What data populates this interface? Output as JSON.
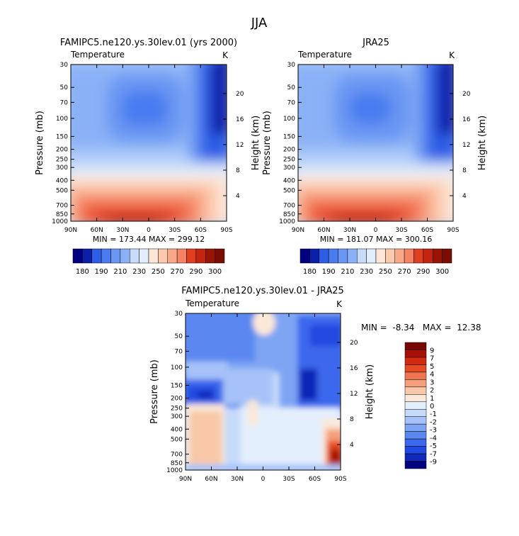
{
  "page_title": "JJA",
  "colors": {
    "cold_scale": [
      "#000080",
      "#0a1ea8",
      "#1b3dd0",
      "#2e5ee6",
      "#4a7cf0",
      "#6a97f3",
      "#8ab0f6",
      "#aac8f8",
      "#c8dcfa",
      "#e2eefc"
    ],
    "warm_scale": [
      "#fde6d6",
      "#fbc9ad",
      "#f8a888",
      "#f48464",
      "#ee6040",
      "#e03f22",
      "#c42510",
      "#9a1406",
      "#7a0c02"
    ],
    "diff_scale": [
      "#000080",
      "#1028b8",
      "#2148e0",
      "#3b68ec",
      "#5a88f0",
      "#7ea4f4",
      "#a6c2f8",
      "#c6daf9",
      "#e4effd",
      "#fbe8d8",
      "#f8c8a8",
      "#f4a07c",
      "#ef7450",
      "#e64a24",
      "#d02a10",
      "#a81206",
      "#7a0602"
    ]
  },
  "chart_data": [
    {
      "type": "heatmap",
      "title": "FAMIPC5.ne120.ys.30lev.01 (yrs 2000)",
      "variable": "Temperature",
      "units": "K",
      "ylabel": "Pressure (mb)",
      "ylabel_right": "Height (km)",
      "x_ticks": [
        "90N",
        "60N",
        "30N",
        "0",
        "30S",
        "60S",
        "90S"
      ],
      "y_ticks": [
        "30",
        "50",
        "70",
        "100",
        "150",
        "200",
        "250",
        "300",
        "400",
        "500",
        "700",
        "850",
        "1000"
      ],
      "height_ticks": [
        "20",
        "16",
        "12",
        "8",
        "4"
      ],
      "stats": "MIN = 173.44   MAX = 299.12",
      "colorbar_labels": [
        "180",
        "190",
        "210",
        "230",
        "250",
        "270",
        "290",
        "300"
      ],
      "levels": [
        180,
        190,
        200,
        210,
        220,
        230,
        240,
        250,
        260,
        270,
        280,
        290,
        300
      ],
      "peak_latitude": "10N",
      "ylim": [
        30,
        1000
      ]
    },
    {
      "type": "heatmap",
      "title": "JRA25",
      "variable": "Temperature",
      "units": "K",
      "ylabel": "Pressure (mb)",
      "ylabel_right": "Height (km)",
      "x_ticks": [
        "90N",
        "60N",
        "30N",
        "0",
        "30S",
        "60S",
        "90S"
      ],
      "y_ticks": [
        "30",
        "50",
        "70",
        "100",
        "150",
        "200",
        "250",
        "300",
        "400",
        "500",
        "700",
        "850",
        "1000"
      ],
      "height_ticks": [
        "20",
        "16",
        "12",
        "8",
        "4"
      ],
      "stats": "MIN = 181.07   MAX = 300.16",
      "colorbar_labels": [
        "180",
        "190",
        "210",
        "230",
        "250",
        "270",
        "290",
        "300"
      ],
      "levels": [
        180,
        190,
        200,
        210,
        220,
        230,
        240,
        250,
        260,
        270,
        280,
        290,
        300
      ],
      "peak_latitude": "10N",
      "ylim": [
        30,
        1000
      ]
    },
    {
      "type": "heatmap",
      "title": "FAMIPC5.ne120.ys.30lev.01 - JRA25",
      "variable": "Temperature",
      "units": "K",
      "ylabel": "Pressure (mb)",
      "ylabel_right": "Height (km)",
      "x_ticks": [
        "90N",
        "60N",
        "30N",
        "0",
        "30S",
        "60S",
        "90S"
      ],
      "y_ticks": [
        "30",
        "50",
        "70",
        "100",
        "150",
        "200",
        "250",
        "300",
        "400",
        "500",
        "700",
        "850",
        "1000"
      ],
      "height_ticks": [
        "20",
        "16",
        "12",
        "8",
        "4"
      ],
      "stats": "MIN =  -8.34   MAX =  12.38",
      "colorbar_labels": [
        "9",
        "7",
        "5",
        "4",
        "3",
        "2",
        "1",
        "0",
        "-1",
        "-2",
        "-3",
        "-4",
        "-5",
        "-7",
        "-9"
      ],
      "levels": [
        -9,
        -7,
        -5,
        -4,
        -3,
        -2,
        -1,
        0,
        1,
        2,
        3,
        4,
        5,
        7,
        9
      ],
      "ylim": [
        30,
        1000
      ]
    }
  ]
}
